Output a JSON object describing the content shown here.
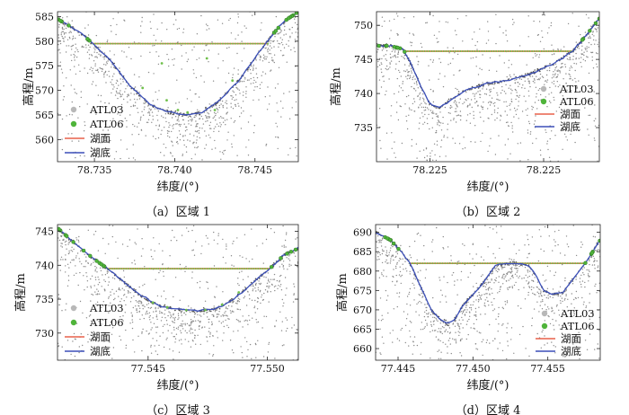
{
  "chart_data": [
    {
      "type": "scatter",
      "panel_label": "（a）区域 1",
      "xlabel": "纬度/(°)",
      "ylabel": "高程/m",
      "xlim": [
        78.7327,
        78.7477
      ],
      "ylim": [
        555.5,
        586
      ],
      "x_ticks": [
        78.735,
        78.74,
        78.745
      ],
      "x_tick_labels": [
        "78.735",
        "78.740",
        "78.745"
      ],
      "y_ticks": [
        560,
        565,
        570,
        575,
        580,
        585
      ],
      "y_tick_labels": [
        "560",
        "565",
        "570",
        "575",
        "580",
        "585"
      ],
      "legend": [
        "ATL03",
        "ATL06",
        "湖面",
        "湖底"
      ],
      "legend_position": "bottom-left",
      "lake_surface": 579.5,
      "surface_x": [
        78.7349,
        78.7458
      ],
      "ground_profile": {
        "x": [
          78.7327,
          78.7335,
          78.7342,
          78.7349,
          78.736,
          78.7372,
          78.7385,
          78.7397,
          78.7407,
          78.7417,
          78.7428,
          78.744,
          78.7452,
          78.746,
          78.7468,
          78.7477
        ],
        "y": [
          584.5,
          583.0,
          581.5,
          579.5,
          576.0,
          571.0,
          567.0,
          565.5,
          565.0,
          565.5,
          568.0,
          572.0,
          577.5,
          581.0,
          584.0,
          586.0
        ]
      },
      "atl06_lake_points": {
        "x": [
          78.738,
          78.7392,
          78.7395,
          78.7402,
          78.7408,
          78.742,
          78.7425,
          78.7436
        ],
        "y": [
          570.5,
          575.5,
          568.0,
          566.0,
          565.5,
          576.5,
          566.0,
          572.0
        ]
      }
    },
    {
      "type": "scatter",
      "panel_label": "（b）区域 2",
      "xlabel": "纬度/(°)",
      "ylabel": "高程/m",
      "xlim": [
        0,
        1
      ],
      "ylim": [
        730,
        752
      ],
      "x_ticks": [
        0.24,
        0.75
      ],
      "x_tick_labels": [
        "78.225",
        "78.225"
      ],
      "y_ticks": [
        735,
        740,
        745,
        750
      ],
      "y_tick_labels": [
        "735",
        "740",
        "745",
        "750"
      ],
      "legend": [
        "ATL03",
        "ATL06",
        "湖面",
        "湖底"
      ],
      "legend_position": "right",
      "lake_surface": 746.2,
      "surface_x": [
        0.13,
        0.88
      ],
      "ground_profile": {
        "x": [
          0,
          0.06,
          0.12,
          0.16,
          0.2,
          0.24,
          0.28,
          0.33,
          0.4,
          0.5,
          0.6,
          0.7,
          0.8,
          0.88,
          0.94,
          1.0
        ],
        "y": [
          747,
          747,
          746.5,
          744,
          741,
          738.5,
          737.8,
          739,
          740.5,
          741.5,
          742,
          743,
          744.5,
          746.2,
          748.5,
          751
        ]
      },
      "atl06_lake_points": {
        "x": [],
        "y": []
      }
    },
    {
      "type": "scatter",
      "panel_label": "（c）区域 3",
      "xlabel": "纬度/(°)",
      "ylabel": "高程/m",
      "xlim": [
        77.5412,
        77.5513
      ],
      "ylim": [
        726,
        746
      ],
      "x_ticks": [
        77.545,
        77.55
      ],
      "x_tick_labels": [
        "77.545",
        "77.550"
      ],
      "y_ticks": [
        730,
        735,
        740,
        745
      ],
      "y_tick_labels": [
        "730",
        "735",
        "740",
        "745"
      ],
      "legend": [
        "ATL03",
        "ATL06",
        "湖面",
        "湖底"
      ],
      "legend_position": "bottom-left",
      "lake_surface": 739.5,
      "surface_x": [
        77.5433,
        77.5501
      ],
      "ground_profile": {
        "x": [
          77.5412,
          77.542,
          77.5427,
          77.5433,
          77.544,
          77.5447,
          77.5455,
          77.5462,
          77.547,
          77.5478,
          77.5486,
          77.5494,
          77.5501,
          77.5507,
          77.5513
        ],
        "y": [
          745.5,
          743.0,
          741.0,
          739.5,
          737.5,
          735.5,
          734.0,
          733.5,
          733.3,
          733.5,
          735.0,
          737.5,
          739.5,
          741.5,
          742.5
        ]
      },
      "atl06_lake_points": {
        "x": [
          77.5452,
          77.5458,
          77.5466,
          77.5474,
          77.5481,
          77.5488
        ],
        "y": [
          734.5,
          733.8,
          733.4,
          733.4,
          734.2,
          736.0
        ]
      }
    },
    {
      "type": "scatter",
      "panel_label": "（d）区域 4",
      "xlabel": "纬度/(°)",
      "ylabel": "高程/m",
      "xlim": [
        77.4435,
        77.4585
      ],
      "ylim": [
        657,
        692
      ],
      "x_ticks": [
        77.445,
        77.45,
        77.455
      ],
      "x_tick_labels": [
        "77.445",
        "77.450",
        "77.455"
      ],
      "y_ticks": [
        660,
        665,
        670,
        675,
        680,
        685,
        690
      ],
      "y_tick_labels": [
        "660",
        "665",
        "670",
        "675",
        "680",
        "685",
        "690"
      ],
      "legend": [
        "ATL03",
        "ATL06",
        "湖面",
        "湖底"
      ],
      "legend_position": "bottom-right",
      "lake_surface": 682.0,
      "surface_x": [
        77.4458,
        77.4575
      ],
      "ground_profile": {
        "x": [
          77.4435,
          77.4445,
          77.4452,
          77.4458,
          77.4465,
          77.4472,
          77.4478,
          77.4483,
          77.4488,
          77.4493,
          77.45,
          77.4507,
          77.4515,
          77.4523,
          77.453,
          77.4537,
          77.4542,
          77.4547,
          77.4553,
          77.456,
          77.4567,
          77.4575,
          77.458,
          77.4585
        ],
        "y": [
          690,
          688,
          685,
          682,
          676,
          670,
          667.5,
          666.5,
          667.5,
          671,
          674,
          677,
          681.5,
          682,
          682,
          681.5,
          679,
          675,
          674,
          674.5,
          678,
          682,
          685,
          688
        ]
      },
      "atl06_lake_points": {
        "x": [],
        "y": []
      }
    }
  ]
}
